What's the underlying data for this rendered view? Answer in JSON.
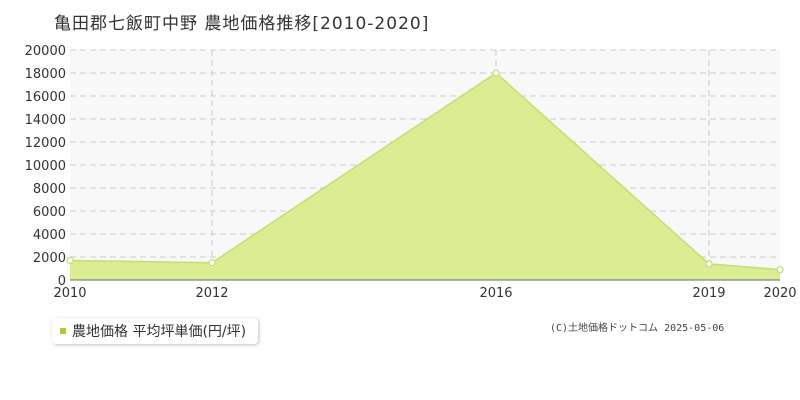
{
  "title": "亀田郡七飯町中野 農地価格推移[2010-2020]",
  "copyright": "(C)土地価格ドットコム 2025-05-06",
  "colors": {
    "fill": "#d9ec8d",
    "line": "#bfe070",
    "legend_marker": "#aacc33",
    "plot_bg": "#f8f8f8",
    "grid": "#cccccc",
    "axis": "#666666"
  },
  "chart_data": {
    "type": "area",
    "title": "亀田郡七飯町中野 農地価格推移[2010-2020]",
    "x": [
      2010,
      2012,
      2016,
      2019,
      2020
    ],
    "series": [
      {
        "name": "農地価格 平均坪単価(円/坪)",
        "values": [
          1700,
          1500,
          18000,
          1400,
          900
        ]
      }
    ],
    "xlim": [
      2010,
      2020
    ],
    "ylim": [
      0,
      20000
    ],
    "y_ticks": [
      0,
      2000,
      4000,
      6000,
      8000,
      10000,
      12000,
      14000,
      16000,
      18000,
      20000
    ],
    "x_tick_labels": [
      "2010",
      "2012",
      "2016",
      "2019",
      "2020"
    ],
    "grid": true,
    "legend": "bottom-left"
  }
}
